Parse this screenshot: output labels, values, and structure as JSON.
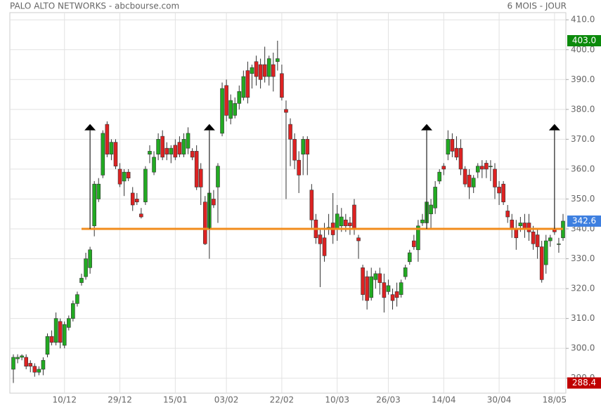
{
  "chart_data": {
    "type": "candlestick",
    "title": "PALO ALTO NETWORKS - abcbourse.com",
    "subtitle": "6 MOIS - JOUR",
    "categories": [
      null,
      null,
      null,
      null,
      null,
      null,
      null,
      null,
      null,
      null,
      null,
      null,
      "10/12",
      null,
      null,
      null,
      null,
      null,
      null,
      null,
      null,
      null,
      null,
      null,
      null,
      "29/12",
      null,
      null,
      null,
      null,
      null,
      null,
      null,
      null,
      null,
      null,
      null,
      null,
      "15/01",
      null,
      null,
      null,
      null,
      null,
      null,
      null,
      null,
      null,
      null,
      null,
      "03/02",
      null,
      null,
      null,
      null,
      null,
      null,
      null,
      null,
      null,
      null,
      null,
      null,
      "22/02",
      null,
      null,
      null,
      null,
      null,
      null,
      null,
      null,
      null,
      null,
      null,
      null,
      "10/03",
      null,
      null,
      null,
      null,
      null,
      null,
      null,
      null,
      null,
      null,
      null,
      "26/03",
      null,
      null,
      null,
      null,
      null,
      null,
      null,
      null,
      null,
      null,
      null,
      null,
      "14/04",
      null,
      null,
      null,
      null,
      null,
      null,
      null,
      null,
      null,
      null,
      null,
      null,
      "30/04",
      null,
      null,
      null,
      null,
      null,
      null,
      null,
      null,
      null,
      null,
      null,
      null,
      "18/05",
      null,
      null
    ],
    "open": [
      293,
      296.5,
      297,
      297,
      295,
      294,
      292,
      293,
      298,
      304,
      302,
      309,
      301,
      307,
      310,
      315,
      322,
      324,
      327,
      341,
      350,
      358,
      375,
      365,
      369,
      360,
      356,
      359,
      352,
      350,
      345,
      349,
      365,
      359,
      365,
      371,
      367,
      365,
      368,
      369,
      365,
      367,
      366,
      366,
      360,
      349,
      340,
      350,
      354,
      372,
      388,
      377,
      378,
      382,
      384,
      393,
      392,
      396,
      395,
      395,
      391,
      395,
      396,
      392,
      380,
      375,
      370,
      363,
      365,
      370,
      353,
      343,
      338,
      337,
      340,
      342,
      340,
      341,
      343,
      342,
      348,
      337,
      327,
      324,
      317,
      323,
      325,
      322,
      319,
      318,
      319,
      318,
      324,
      329,
      336,
      333,
      342,
      342,
      345,
      347,
      356,
      361,
      365,
      370,
      367,
      367,
      360,
      358,
      354,
      359,
      361,
      362,
      361,
      360,
      354,
      355,
      346,
      343,
      340,
      341,
      342,
      342,
      339,
      338,
      334,
      328,
      336,
      340,
      335,
      337
    ],
    "high": [
      298,
      298,
      298,
      298,
      296,
      295,
      294,
      297,
      305,
      306,
      312,
      310,
      309,
      311,
      316,
      319,
      325,
      332,
      334,
      356,
      357,
      373,
      376,
      370,
      370,
      362,
      360,
      360,
      354,
      352,
      347,
      361,
      368,
      366,
      372,
      373,
      369,
      368,
      370,
      371,
      372,
      374,
      367,
      368,
      362,
      351,
      353,
      353,
      362,
      389,
      390,
      385,
      384,
      388,
      393,
      396,
      395,
      398,
      397,
      401,
      398,
      399,
      403,
      395,
      383,
      377,
      372,
      366,
      371,
      371,
      355,
      345,
      340,
      342,
      345,
      352,
      348,
      347,
      345,
      344,
      350,
      338,
      328,
      326,
      327,
      326,
      327,
      325,
      323,
      320,
      322,
      323,
      328,
      333,
      338,
      343,
      345,
      350,
      350,
      356,
      360,
      362,
      373,
      372,
      371,
      370,
      361,
      360,
      358,
      362,
      363,
      363,
      363,
      362,
      356,
      356,
      348,
      345,
      343,
      344,
      345,
      345,
      341,
      340,
      336,
      338,
      338,
      341,
      337,
      345
    ],
    "low": [
      288.4,
      295,
      296,
      293,
      292,
      290.5,
      291,
      291,
      297,
      301,
      301,
      300,
      300,
      306,
      309,
      314,
      321,
      323,
      325,
      337.5,
      349,
      357,
      364,
      363,
      360,
      354,
      351,
      356,
      346,
      348,
      343.5,
      348,
      362,
      358,
      363,
      363,
      363,
      362,
      363,
      364,
      364,
      365,
      363,
      353,
      348,
      334.6,
      330,
      347,
      342,
      371,
      376,
      375,
      377,
      380,
      383,
      382,
      387,
      388,
      387,
      389,
      388,
      386,
      393,
      383,
      350,
      361,
      360,
      352,
      358,
      358,
      340,
      335,
      320.5,
      329,
      338,
      335,
      336,
      339,
      339,
      338,
      338,
      330,
      316,
      313,
      316,
      320,
      318,
      312,
      318,
      313,
      314,
      317,
      323,
      328,
      333,
      329,
      341,
      340,
      340,
      345,
      355,
      358,
      363,
      364,
      363,
      358,
      354,
      350,
      352,
      357,
      357,
      357,
      356,
      350,
      348,
      348,
      342,
      337,
      333,
      339,
      337,
      336,
      333,
      330,
      322,
      325,
      334,
      338,
      332,
      336
    ],
    "close": [
      297,
      297,
      297.5,
      294,
      294,
      292,
      293,
      296,
      304,
      302,
      310,
      302,
      308,
      310,
      315,
      318,
      323.5,
      330,
      333,
      355,
      355,
      372,
      365,
      369,
      361,
      355,
      359,
      357,
      348,
      349,
      344,
      360,
      366,
      364,
      370,
      364,
      365,
      367,
      364,
      365,
      370,
      372,
      364,
      354,
      354,
      335,
      352,
      348,
      361,
      387,
      378,
      383,
      382,
      386,
      391,
      384,
      394,
      391,
      390,
      391,
      397,
      391,
      397,
      384,
      379,
      370,
      363,
      358,
      370,
      365,
      343,
      337,
      335,
      331,
      340.5,
      338,
      345,
      344,
      341,
      341,
      340,
      336,
      318,
      316,
      324,
      325,
      322,
      317,
      321,
      316,
      317,
      322,
      327,
      332,
      334,
      341,
      343,
      349,
      348,
      354,
      359,
      360,
      370,
      366,
      364,
      360,
      355,
      354,
      357,
      361,
      360,
      360,
      361,
      354,
      352,
      349,
      344,
      340,
      337,
      342,
      340,
      339,
      335,
      334,
      323,
      336,
      337,
      339,
      335,
      342.6
    ],
    "up_color": "#22aa22",
    "down_color": "#dd2222",
    "ylim": [
      285,
      412.4
    ],
    "yticks": [
      {
        "value": 290,
        "label": "290.0"
      },
      {
        "value": 300,
        "label": "300.0"
      },
      {
        "value": 310,
        "label": "310.0"
      },
      {
        "value": 320,
        "label": "320.0"
      },
      {
        "value": 330,
        "label": "330.0"
      },
      {
        "value": 340,
        "label": "340.0"
      },
      {
        "value": 350,
        "label": "350.0"
      },
      {
        "value": 360,
        "label": "360.0"
      },
      {
        "value": 370,
        "label": "370.0"
      },
      {
        "value": 380,
        "label": "380.0"
      },
      {
        "value": 390,
        "label": "390.0"
      },
      {
        "value": 400,
        "label": "400.0"
      },
      {
        "value": 410,
        "label": "410.0"
      }
    ],
    "grid": true,
    "price_labels": [
      {
        "value": 403.0,
        "label": "403.0",
        "color": "#0b8a0b"
      },
      {
        "value": 342.6,
        "label": "342.6",
        "color": "#3d7fe0"
      },
      {
        "value": 288.4,
        "label": "288.4",
        "color": "#c00000"
      }
    ],
    "support_line": {
      "value": 340,
      "color": "#f28c1c"
    },
    "arrows": [
      {
        "index": 18,
        "from": 340,
        "to": 373
      },
      {
        "index": 46,
        "from": 340,
        "to": 373
      },
      {
        "index": 97,
        "from": 340,
        "to": 373
      },
      {
        "index": 127,
        "from": 340,
        "to": 373
      }
    ]
  }
}
